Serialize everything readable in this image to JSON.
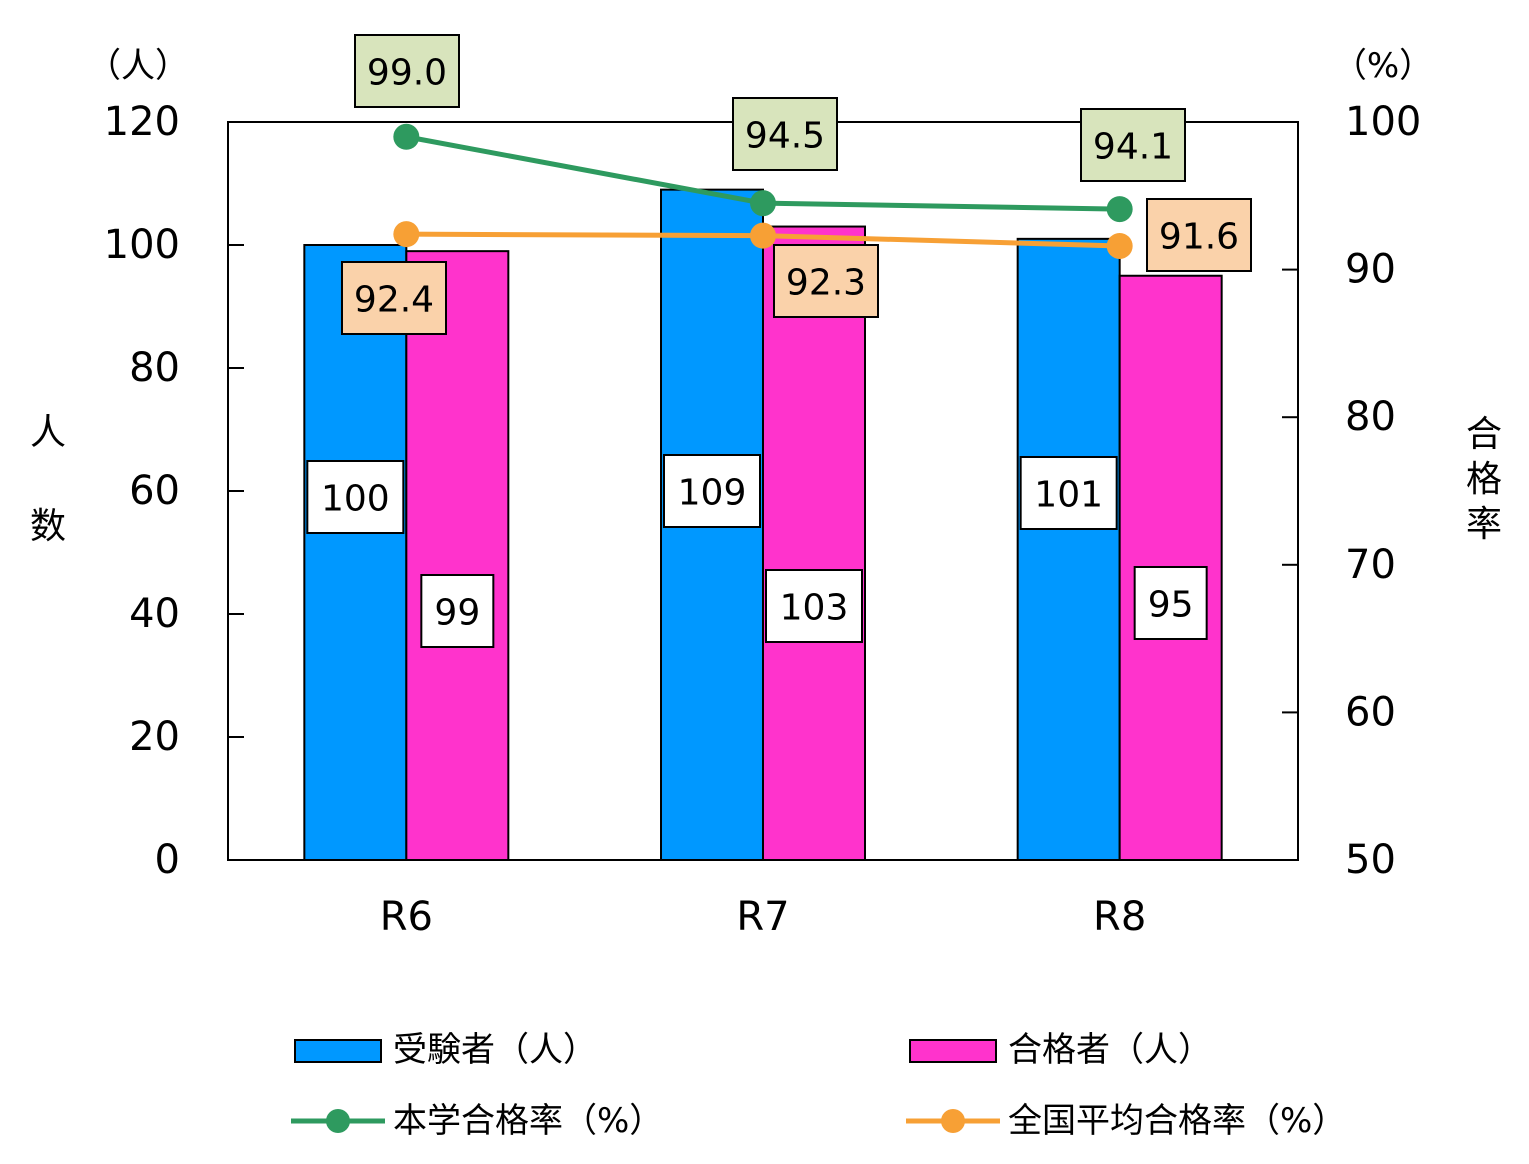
{
  "chart_data": {
    "type": "bar",
    "categories": [
      "R6",
      "R7",
      "R8"
    ],
    "left_axis": {
      "unit": "（人）",
      "title": "人数",
      "ylim": [
        0,
        120
      ],
      "ticks": [
        0,
        20,
        40,
        60,
        80,
        100,
        120
      ]
    },
    "right_axis": {
      "unit": "（%）",
      "title": "合格率",
      "ylim": [
        50,
        100
      ],
      "ticks": [
        50,
        60,
        70,
        80,
        90,
        100
      ]
    },
    "series": [
      {
        "name": "受験者（人）",
        "kind": "bar",
        "axis": "left",
        "color": "#0098FF",
        "values": [
          100,
          109,
          101
        ],
        "label_bg": "#FFFFFF"
      },
      {
        "name": "合格者（人）",
        "kind": "bar",
        "axis": "left",
        "color": "#FF33CC",
        "values": [
          99,
          103,
          95
        ],
        "label_bg": "#FFFFFF"
      },
      {
        "name": "本学合格率（%）",
        "kind": "line",
        "axis": "right",
        "color": "#2E9A5F",
        "values": [
          99.0,
          94.5,
          94.1
        ],
        "label_bg": "#D8E4BC",
        "labels": [
          "99.0",
          "94.5",
          "94.1"
        ]
      },
      {
        "name": "全国平均合格率（%）",
        "kind": "line",
        "axis": "right",
        "color": "#F7A035",
        "values": [
          92.4,
          92.3,
          91.6
        ],
        "label_bg": "#FAD2AA",
        "labels": [
          "92.4",
          "92.3",
          "91.6"
        ]
      }
    ],
    "grid": false,
    "legend": "bottom"
  }
}
